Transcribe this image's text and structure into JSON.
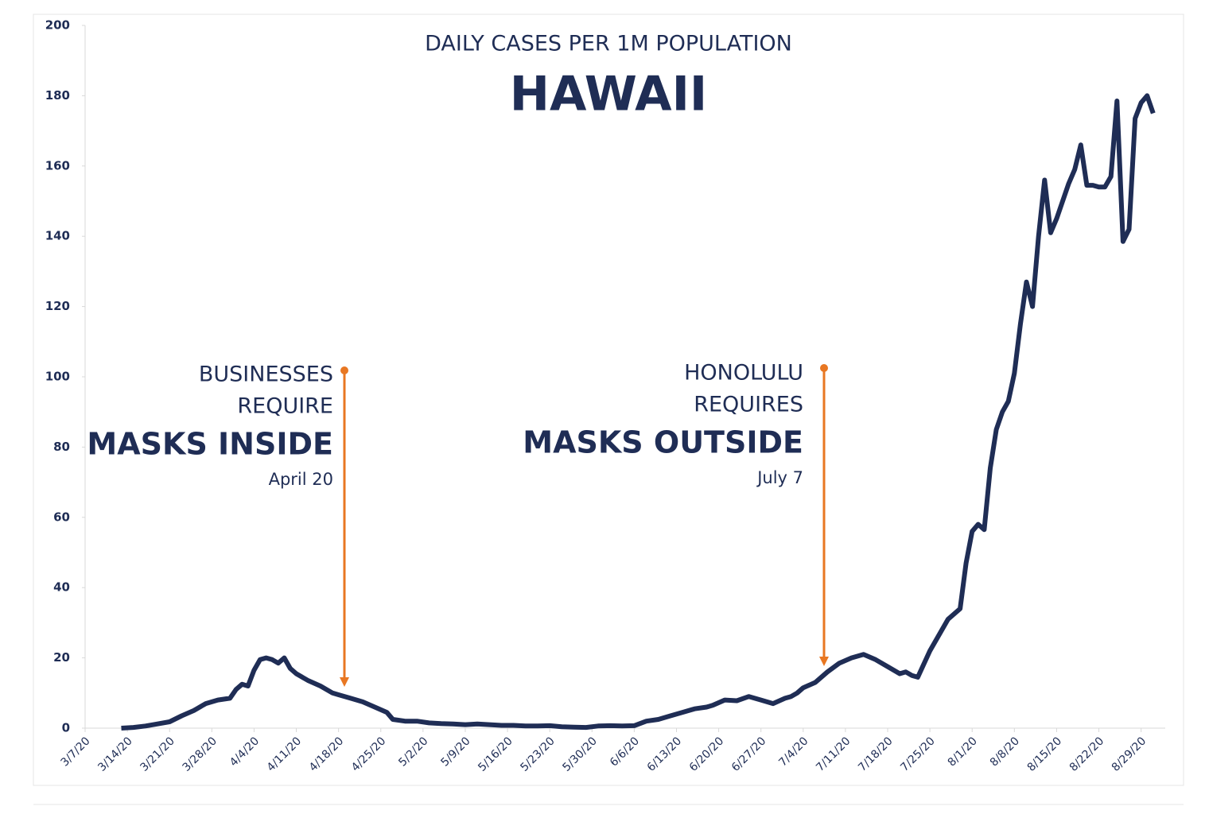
{
  "chart_data": {
    "type": "line",
    "title": "HAWAII",
    "subtitle": "DAILY CASES PER 1M POPULATION",
    "annotations": [
      {
        "lines": [
          "BUSINESSES",
          "REQUIRE",
          "MASKS INSIDE",
          "April 20"
        ]
      },
      {
        "lines": [
          "HONOLULU",
          "REQUIRES",
          "MASKS OUTSIDE",
          "July 7"
        ]
      }
    ],
    "xlim": [
      "3/7/20",
      "9/2/20"
    ],
    "xticks": [
      "3/7/20",
      "3/14/20",
      "3/21/20",
      "3/28/20",
      "4/4/20",
      "4/11/20",
      "4/18/20",
      "4/25/20",
      "5/2/20",
      "5/9/20",
      "5/16/20",
      "5/23/20",
      "5/30/20",
      "6/6/20",
      "6/13/20",
      "6/20/20",
      "6/27/20",
      "7/4/20",
      "7/11/20",
      "7/18/20",
      "7/25/20",
      "8/1/20",
      "8/8/20",
      "8/15/20",
      "8/22/20",
      "8/29/20"
    ],
    "ylim": [
      0,
      200
    ],
    "yticks": [
      0,
      20,
      40,
      60,
      80,
      100,
      120,
      140,
      160,
      180,
      200
    ],
    "x": [
      "3/13/20",
      "3/15/20",
      "3/17/20",
      "3/19/20",
      "3/21/20",
      "3/23/20",
      "3/25/20",
      "3/27/20",
      "3/29/20",
      "3/31/20",
      "4/1/20",
      "4/2/20",
      "4/3/20",
      "4/4/20",
      "4/5/20",
      "4/6/20",
      "4/7/20",
      "4/8/20",
      "4/9/20",
      "4/10/20",
      "4/11/20",
      "4/13/20",
      "4/15/20",
      "4/17/20",
      "4/18/20",
      "4/20/20",
      "4/22/20",
      "4/24/20",
      "4/26/20",
      "4/27/20",
      "4/29/20",
      "5/1/20",
      "5/3/20",
      "5/5/20",
      "5/7/20",
      "5/9/20",
      "5/11/20",
      "5/13/20",
      "5/15/20",
      "5/17/20",
      "5/19/20",
      "5/21/20",
      "5/23/20",
      "5/25/20",
      "5/27/20",
      "5/29/20",
      "5/31/20",
      "6/2/20",
      "6/4/20",
      "6/6/20",
      "6/8/20",
      "6/10/20",
      "6/12/20",
      "6/14/20",
      "6/16/20",
      "6/18/20",
      "6/19/20",
      "6/21/20",
      "6/23/20",
      "6/25/20",
      "6/27/20",
      "6/29/20",
      "7/1/20",
      "7/2/20",
      "7/3/20",
      "7/4/20",
      "7/6/20",
      "7/8/20",
      "7/10/20",
      "7/12/20",
      "7/14/20",
      "7/16/20",
      "7/18/20",
      "7/20/20",
      "7/21/20",
      "7/22/20",
      "7/23/20",
      "7/25/20",
      "7/27/20",
      "7/28/20",
      "7/30/20",
      "7/31/20",
      "8/1/20",
      "8/2/20",
      "8/3/20",
      "8/4/20",
      "8/5/20",
      "8/6/20",
      "8/7/20",
      "8/8/20",
      "8/9/20",
      "8/10/20",
      "8/11/20",
      "8/12/20",
      "8/13/20",
      "8/14/20",
      "8/15/20",
      "8/16/20",
      "8/17/20",
      "8/18/20",
      "8/19/20",
      "8/20/20",
      "8/21/20",
      "8/22/20",
      "8/23/20",
      "8/24/20",
      "8/25/20",
      "8/26/20",
      "8/27/20",
      "8/28/20",
      "8/29/20",
      "8/30/20",
      "8/31/20"
    ],
    "series": [
      {
        "color": "#1f2d55",
        "values": [
          0,
          0.2,
          0.6,
          1.2,
          1.8,
          3.5,
          5,
          7,
          8,
          8.5,
          11,
          12.5,
          12,
          16.5,
          19.5,
          20,
          19.5,
          18.5,
          20,
          17,
          15.5,
          13.5,
          12,
          10,
          9.5,
          8.5,
          7.5,
          6,
          4.5,
          2.5,
          2,
          2,
          1.5,
          1.3,
          1.2,
          1,
          1.2,
          1,
          0.8,
          0.8,
          0.6,
          0.6,
          0.7,
          0.4,
          0.3,
          0.2,
          0.6,
          0.7,
          0.6,
          0.7,
          2,
          2.5,
          3.5,
          4.5,
          5.5,
          6,
          6.5,
          8,
          7.8,
          9,
          8,
          7,
          8.5,
          9,
          10,
          11.5,
          13,
          16,
          18.5,
          20,
          21,
          19.5,
          17.5,
          15.5,
          16,
          15,
          14.5,
          22,
          28,
          31,
          34,
          47,
          56,
          58,
          56.5,
          74,
          85,
          90,
          93,
          101,
          115,
          127,
          120,
          140,
          156,
          141,
          145,
          150,
          155,
          159,
          166,
          154.5,
          154.5,
          154,
          154,
          157,
          178.5,
          138.5,
          142,
          173.5,
          178,
          180,
          175
        ]
      }
    ],
    "annotation_color": "#e87722"
  }
}
